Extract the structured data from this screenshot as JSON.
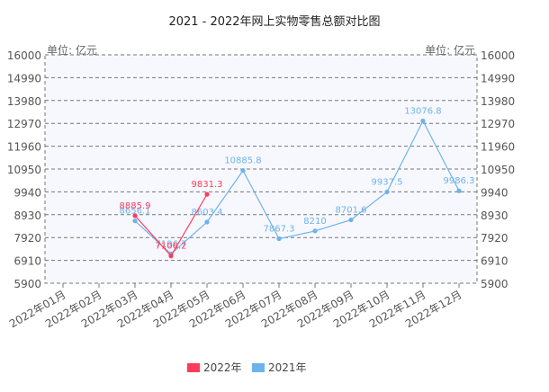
{
  "chart_data": {
    "type": "line",
    "title": "2021 - 2022年网上实物零售总额对比图",
    "unit_left": "单位: 亿元",
    "unit_right": "单位: 亿元",
    "categories": [
      "2022年01月",
      "2022年02月",
      "2022年03月",
      "2022年04月",
      "2022年05月",
      "2022年06月",
      "2022年07月",
      "2022年08月",
      "2022年09月",
      "2022年10月",
      "2022年11月",
      "2022年12月"
    ],
    "y_ticks": [
      5900,
      6910,
      7920,
      8930,
      9940,
      10950,
      11960,
      12970,
      13980,
      14990,
      16000
    ],
    "ylim": [
      5900,
      16000
    ],
    "grid": true,
    "legend_position": "bottom",
    "series": [
      {
        "name": "2022年",
        "color": "#ff3b5c",
        "values": [
          null,
          null,
          8885.9,
          7106.2,
          9831.3,
          null,
          null,
          null,
          null,
          null,
          null,
          null
        ],
        "labels": [
          "",
          "",
          "8885.9",
          "7106.2",
          "9831.3",
          "",
          "",
          "",
          "",
          "",
          "",
          ""
        ]
      },
      {
        "name": "2021年",
        "color": "#6db3ec",
        "values": [
          null,
          null,
          8656.1,
          7196.7,
          8603.4,
          10885.8,
          7867.3,
          8210,
          8701.6,
          9937.5,
          13076.8,
          9986.3
        ],
        "labels": [
          "",
          "",
          "8656.1",
          "7196.7",
          "8603.4",
          "10885.8",
          "7867.3",
          "8210",
          "8701.6",
          "9937.5",
          "13076.8",
          "9986.3"
        ]
      }
    ]
  }
}
